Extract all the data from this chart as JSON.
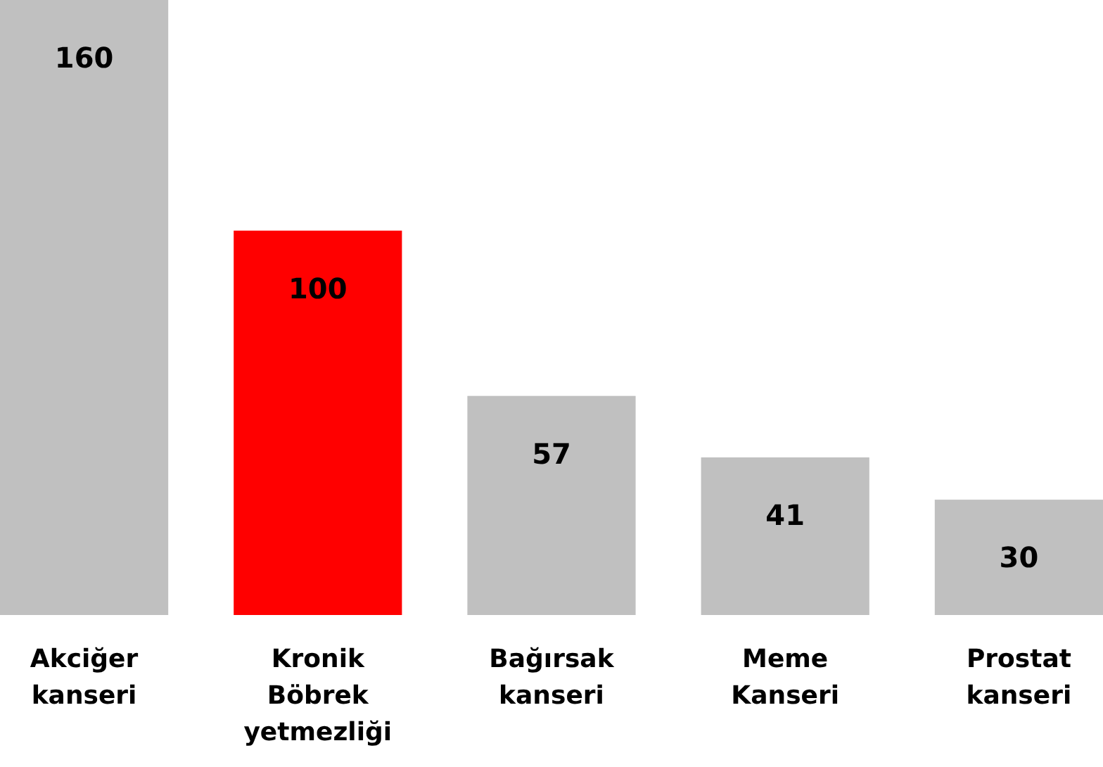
{
  "chart_data": {
    "type": "bar",
    "categories": [
      "Akciğer kanseri",
      "Kronik Böbrek yetmezliği",
      "Bağırsak kanseri",
      "Meme Kanseri",
      "Prostat kanseri"
    ],
    "values": [
      160,
      100,
      57,
      41,
      30
    ],
    "colors": [
      "#c0c0c0",
      "#ff0000",
      "#c0c0c0",
      "#c0c0c0",
      "#c0c0c0"
    ],
    "data_labels": true
  }
}
